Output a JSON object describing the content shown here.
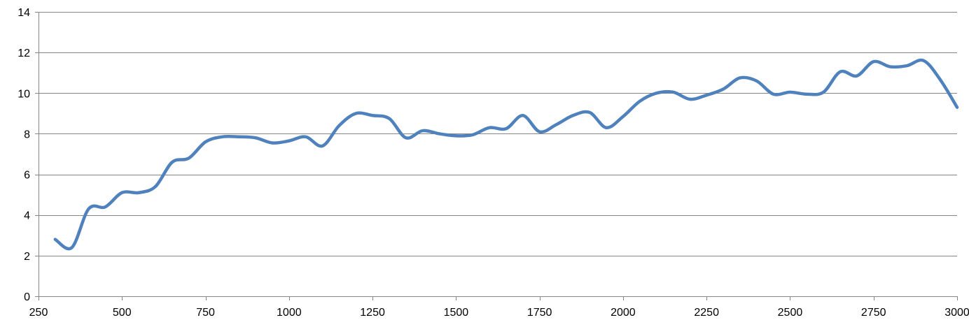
{
  "chart_data": {
    "type": "line",
    "title": "",
    "xlabel": "",
    "ylabel": "",
    "xlim": [
      250,
      3000
    ],
    "ylim": [
      0,
      14
    ],
    "x_ticks": [
      250,
      500,
      750,
      1000,
      1250,
      1500,
      1750,
      2000,
      2250,
      2500,
      2750,
      3000
    ],
    "y_ticks": [
      0,
      2,
      4,
      6,
      8,
      10,
      12,
      14
    ],
    "grid": "horizontal",
    "legend": "none",
    "colors": {
      "line": "#4F81BD",
      "grid": "#868686",
      "text": "#000000"
    },
    "series": [
      {
        "x": [
          300,
          350,
          400,
          450,
          500,
          550,
          600,
          650,
          700,
          750,
          800,
          850,
          900,
          950,
          1000,
          1050,
          1100,
          1150,
          1200,
          1250,
          1300,
          1350,
          1400,
          1450,
          1500,
          1550,
          1600,
          1650,
          1700,
          1750,
          1800,
          1850,
          1900,
          1950,
          2000,
          2050,
          2100,
          2150,
          2200,
          2250,
          2300,
          2350,
          2400,
          2450,
          2500,
          2550,
          2600,
          2650,
          2700,
          2750,
          2800,
          2850,
          2900,
          2950,
          3000
        ],
        "y": [
          2.8,
          2.4,
          4.3,
          4.4,
          5.1,
          5.1,
          5.4,
          6.6,
          6.8,
          7.6,
          7.85,
          7.85,
          7.8,
          7.55,
          7.65,
          7.85,
          7.4,
          8.4,
          9.0,
          8.9,
          8.75,
          7.8,
          8.15,
          8.0,
          7.9,
          7.95,
          8.3,
          8.25,
          8.9,
          8.1,
          8.45,
          8.9,
          9.05,
          8.3,
          8.85,
          9.6,
          10.0,
          10.05,
          9.7,
          9.9,
          10.2,
          10.75,
          10.6,
          9.95,
          10.05,
          9.95,
          10.05,
          11.05,
          10.85,
          11.55,
          11.3,
          11.35,
          11.6,
          10.65,
          9.3
        ]
      }
    ]
  }
}
